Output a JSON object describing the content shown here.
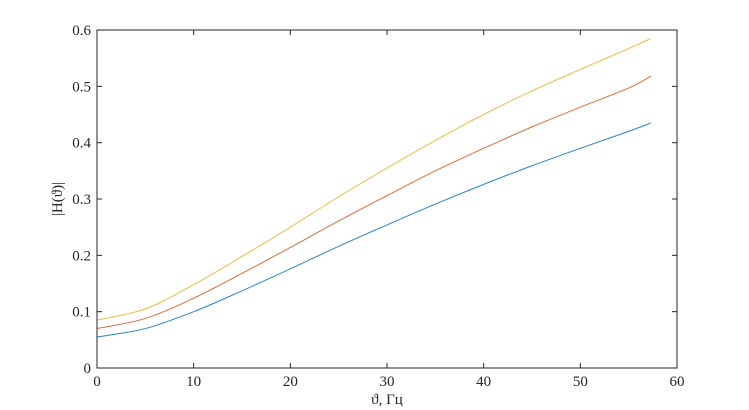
{
  "chart_data": {
    "type": "line",
    "title": "",
    "xlabel": "ϑ, Гц",
    "ylabel": "|H(ϑ)|",
    "xlim": [
      0,
      60
    ],
    "ylim": [
      0,
      0.6
    ],
    "xticks": [
      0,
      10,
      20,
      30,
      40,
      50,
      60
    ],
    "yticks": [
      0,
      0.1,
      0.2,
      0.3,
      0.4,
      0.5,
      0.6
    ],
    "xtick_labels": [
      "0",
      "10",
      "20",
      "30",
      "40",
      "50",
      "60"
    ],
    "ytick_labels": [
      "0",
      "0.1",
      "0.2",
      "0.3",
      "0.4",
      "0.5",
      "0.6"
    ],
    "grid": false,
    "legend": "none",
    "x": [
      0,
      5,
      10,
      15,
      20,
      25,
      30,
      35,
      40,
      45,
      50,
      55,
      57.3
    ],
    "series": [
      {
        "color": "#0072BD",
        "values": [
          0.055,
          0.07,
          0.1,
          0.137,
          0.176,
          0.216,
          0.254,
          0.291,
          0.326,
          0.359,
          0.39,
          0.42,
          0.435
        ]
      },
      {
        "color": "#D95319",
        "values": [
          0.07,
          0.088,
          0.124,
          0.168,
          0.214,
          0.261,
          0.306,
          0.35,
          0.39,
          0.428,
          0.463,
          0.497,
          0.518
        ]
      },
      {
        "color": "#EDB120",
        "values": [
          0.085,
          0.105,
          0.148,
          0.198,
          0.25,
          0.304,
          0.355,
          0.404,
          0.45,
          0.492,
          0.53,
          0.567,
          0.585
        ]
      }
    ]
  }
}
